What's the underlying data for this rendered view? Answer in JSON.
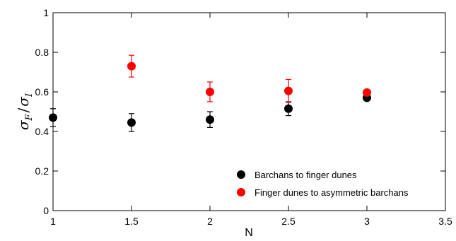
{
  "chart_data": {
    "type": "scatter",
    "xlabel": "N",
    "ylabel": "σF / σI",
    "ylabel_parts": {
      "sym1": "σ",
      "sub1": "F",
      "slash": "/",
      "sym2": "σ",
      "sub2": "I"
    },
    "xlim": [
      1,
      3.5
    ],
    "ylim": [
      0,
      1
    ],
    "xticks": [
      "1",
      "1.5",
      "2",
      "2.5",
      "3",
      "3.5"
    ],
    "yticks": [
      "0",
      "0.2",
      "0.4",
      "0.6",
      "0.8",
      "1"
    ],
    "grid": false,
    "legend_position": "bottom-right",
    "series": [
      {
        "name": "Barchans to finger dunes",
        "color": "#000000",
        "x": [
          1,
          1.5,
          2,
          2.5,
          3
        ],
        "y": [
          0.47,
          0.445,
          0.46,
          0.515,
          0.57
        ],
        "err": [
          0.045,
          0.045,
          0.04,
          0.035,
          0.01
        ]
      },
      {
        "name": "Finger dunes to asymmetric barchans",
        "color": "#ff0000",
        "x": [
          1.5,
          2,
          2.5,
          3
        ],
        "y": [
          0.73,
          0.6,
          0.605,
          0.597
        ],
        "err": [
          0.055,
          0.05,
          0.058,
          0.008
        ]
      }
    ]
  }
}
